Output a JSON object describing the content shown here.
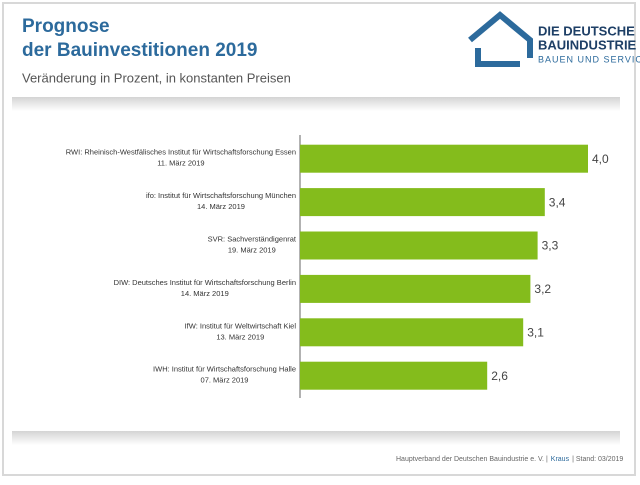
{
  "chart_data": {
    "type": "hbar",
    "title": [
      "Prognose",
      "der Bauinvestitionen 2019"
    ],
    "subtitle": "Veränderung in Prozent, in konstanten Preisen",
    "logo": [
      "DIE DEUTSCHE",
      "BAUINDUSTRIE",
      "BAUEN UND SERVICES"
    ],
    "categories": [
      [
        "RWI: Rheinisch-Westfälisches Institut für Wirtschaftsforschung Essen",
        "11. März  2019"
      ],
      [
        "ifo: Institut für Wirtschaftsforschung München",
        "14. März 2019"
      ],
      [
        "SVR: Sachverständigenrat",
        "19. März 2019"
      ],
      [
        "DIW: Deutsches Institut für Wirtschaftsforschung Berlin",
        "14. März 2019"
      ],
      [
        "IfW: Institut für Weltwirtschaft Kiel",
        "13. März 2019"
      ],
      [
        "IWH: Institut für Wirtschaftsforschung Halle",
        "07. März 2019"
      ]
    ],
    "values": [
      4.0,
      3.4,
      3.3,
      3.2,
      3.1,
      2.6
    ],
    "value_labels": [
      "4,0",
      "3,4",
      "3,3",
      "3,2",
      "3,1",
      "2,6"
    ],
    "color": "#84bc1c",
    "footer": [
      "Hauptverband der Deutschen Bauindustrie e. V. |",
      "Kraus",
      "| Stand: 03/2019"
    ]
  }
}
